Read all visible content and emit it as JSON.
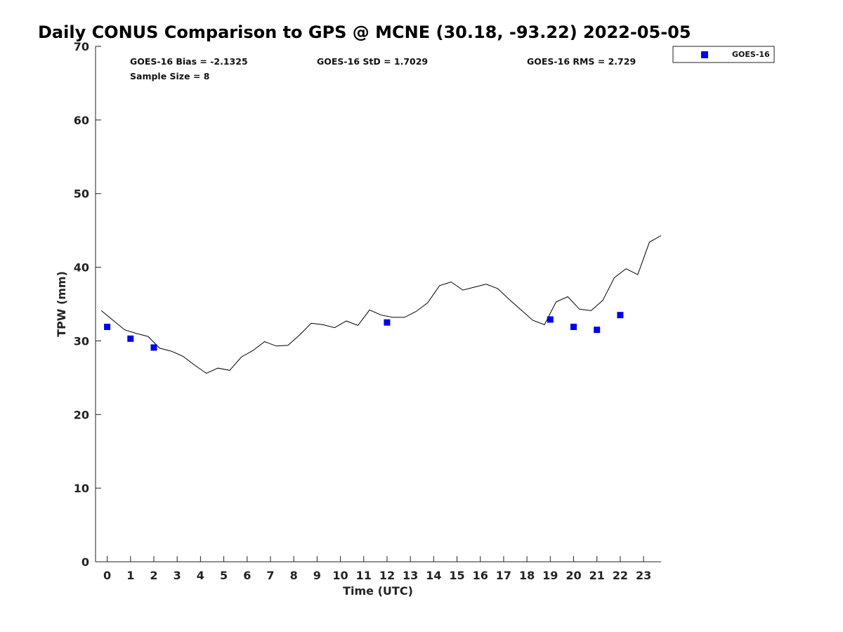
{
  "chart_data": {
    "type": "scatter",
    "title": "Daily CONUS Comparison to GPS @ MCNE (30.18, -93.22) 2022-05-05",
    "xlabel": "Time (UTC)",
    "ylabel": "TPW (mm)",
    "xlim": [
      -0.5,
      23.75
    ],
    "ylim": [
      0,
      70
    ],
    "x_ticks": [
      0,
      1,
      2,
      3,
      4,
      5,
      6,
      7,
      8,
      9,
      10,
      11,
      12,
      13,
      14,
      15,
      16,
      17,
      18,
      19,
      20,
      21,
      22,
      23
    ],
    "y_ticks": [
      0,
      10,
      20,
      30,
      40,
      50,
      60,
      70
    ],
    "grid": false,
    "legend_position": "top-right",
    "stats": {
      "bias": "GOES-16 Bias = -2.1325",
      "std": "GOES-16 StD = 1.7029",
      "rms": "GOES-16 RMS = 2.729",
      "sample": "Sample Size = 8"
    },
    "series": [
      {
        "name": "GOES-16",
        "kind": "scatter",
        "marker": "square",
        "color": "#0000ee",
        "x": [
          0,
          1,
          2,
          12,
          19,
          20,
          21,
          22
        ],
        "y": [
          31.9,
          30.3,
          29.1,
          32.5,
          32.9,
          31.9,
          31.5,
          33.5
        ]
      },
      {
        "kind": "line",
        "color": "#000000",
        "x": [
          -0.25,
          0.25,
          0.75,
          1.25,
          1.75,
          2.25,
          2.75,
          3.25,
          3.75,
          4.25,
          4.75,
          5.25,
          5.75,
          6.25,
          6.75,
          7.25,
          7.75,
          8.25,
          8.75,
          9.25,
          9.75,
          10.25,
          10.75,
          11.25,
          11.75,
          12.25,
          12.75,
          13.25,
          13.75,
          14.25,
          14.75,
          15.25,
          15.75,
          16.25,
          16.75,
          17.25,
          17.75,
          18.25,
          18.75,
          19.25,
          19.75,
          20.25,
          20.75,
          21.25,
          21.75,
          22.25,
          22.75,
          23.25,
          23.75
        ],
        "y": [
          34.1,
          32.8,
          31.5,
          31.0,
          30.6,
          29.0,
          28.6,
          27.9,
          26.7,
          25.6,
          26.3,
          26.0,
          27.8,
          28.7,
          29.9,
          29.3,
          29.4,
          30.8,
          32.4,
          32.2,
          31.8,
          32.7,
          32.1,
          34.2,
          33.5,
          33.2,
          33.2,
          34.0,
          35.2,
          37.5,
          38.0,
          36.9,
          37.3,
          37.7,
          37.1,
          35.6,
          34.2,
          32.8,
          32.2,
          35.3,
          36.0,
          34.3,
          34.1,
          35.5,
          38.6,
          39.8,
          39.0,
          43.4,
          44.3
        ]
      }
    ]
  }
}
